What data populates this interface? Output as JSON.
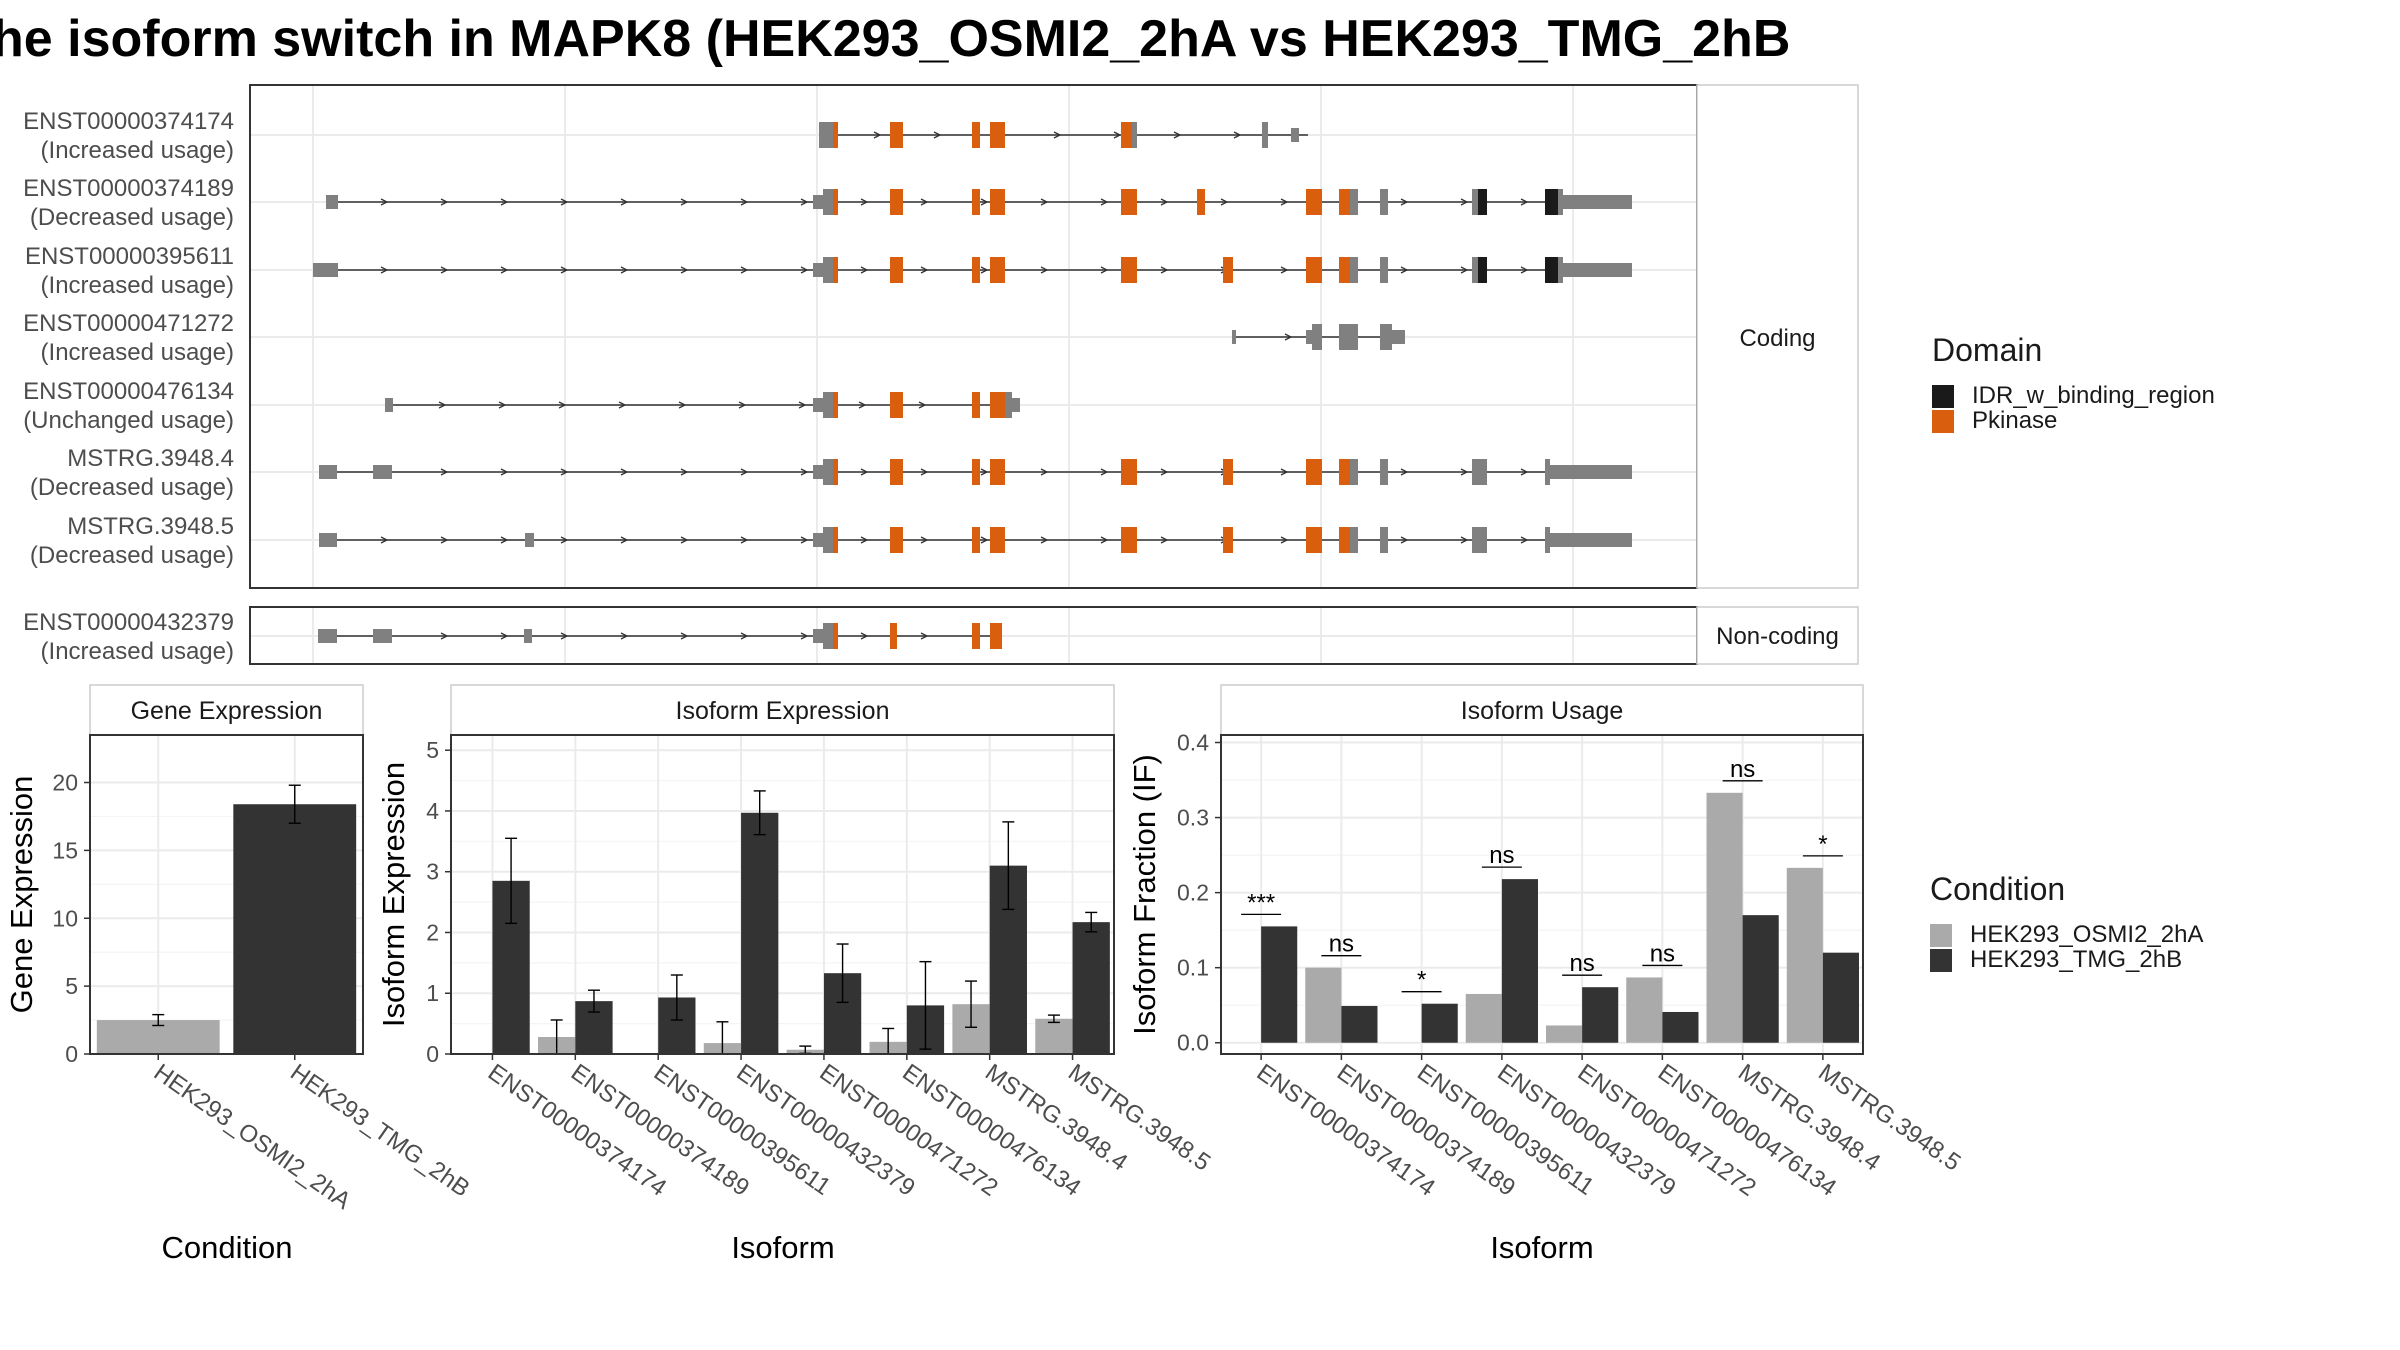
{
  "title": "he isoform switch in MAPK8 (HEK293_OSMI2_2hA vs HEK293_TMG_2hB",
  "colors": {
    "pkinase": "#D95F0E",
    "idr": "#1A1A1A",
    "exon": "#808080",
    "cond_a": "#AAAAAA",
    "cond_b": "#333333"
  },
  "structure": {
    "coding_label": "Coding",
    "noncoding_label": "Non-coding",
    "isoforms": [
      {
        "id": "ENST00000374174",
        "usage": "(Increased usage)"
      },
      {
        "id": "ENST00000374189",
        "usage": "(Decreased usage)"
      },
      {
        "id": "ENST00000395611",
        "usage": "(Increased usage)"
      },
      {
        "id": "ENST00000471272",
        "usage": "(Increased usage)"
      },
      {
        "id": "ENST00000476134",
        "usage": "(Unchanged usage)"
      },
      {
        "id": "MSTRG.3948.4",
        "usage": "(Decreased usage)"
      },
      {
        "id": "MSTRG.3948.5",
        "usage": "(Decreased usage)"
      },
      {
        "id": "ENST00000432379",
        "usage": "(Increased usage)"
      }
    ]
  },
  "legend_domain": {
    "title": "Domain",
    "items": [
      {
        "label": "IDR_w_binding_region",
        "color": "#1A1A1A"
      },
      {
        "label": "Pkinase",
        "color": "#D95F0E"
      }
    ]
  },
  "legend_condition": {
    "title": "Condition",
    "items": [
      {
        "label": "HEK293_OSMI2_2hA",
        "color": "#AAAAAA"
      },
      {
        "label": "HEK293_TMG_2hB",
        "color": "#333333"
      }
    ]
  },
  "chart_data": [
    {
      "type": "bar",
      "title": "Gene Expression",
      "xlabel": "Condition",
      "ylabel": "Gene Expression",
      "ylim": [
        0,
        23.5
      ],
      "yticks": [
        0,
        5,
        10,
        15,
        20
      ],
      "categories": [
        "HEK293_OSMI2_2hA",
        "HEK293_TMG_2hB"
      ],
      "values": [
        2.5,
        18.4
      ],
      "errors": [
        0.4,
        1.4
      ]
    },
    {
      "type": "bar",
      "title": "Isoform Expression",
      "xlabel": "Isoform",
      "ylabel": "Isoform Expression",
      "ylim": [
        0,
        5.25
      ],
      "yticks": [
        0,
        1,
        2,
        3,
        4,
        5
      ],
      "categories": [
        "ENST00000374174",
        "ENST00000374189",
        "ENST00000395611",
        "ENST00000432379",
        "ENST00000471272",
        "ENST00000476134",
        "MSTRG.3948.4",
        "MSTRG.3948.5"
      ],
      "series": [
        {
          "name": "HEK293_OSMI2_2hA",
          "values": [
            0.0,
            0.28,
            0.0,
            0.18,
            0.07,
            0.2,
            0.82,
            0.58
          ],
          "errors": [
            0.0,
            0.28,
            0.0,
            0.35,
            0.06,
            0.22,
            0.38,
            0.06
          ]
        },
        {
          "name": "HEK293_TMG_2hB",
          "values": [
            2.85,
            0.87,
            0.93,
            3.97,
            1.33,
            0.8,
            3.1,
            2.17
          ],
          "errors": [
            0.7,
            0.18,
            0.37,
            0.36,
            0.48,
            0.72,
            0.72,
            0.16
          ]
        }
      ]
    },
    {
      "type": "bar",
      "title": "Isoform Usage",
      "xlabel": "Isoform",
      "ylabel": "Isoform Fraction (IF)",
      "ylim": [
        -0.015,
        0.41
      ],
      "yticks": [
        0.0,
        0.1,
        0.2,
        0.3,
        0.4
      ],
      "categories": [
        "ENST00000374174",
        "ENST00000374189",
        "ENST00000395611",
        "ENST00000432379",
        "ENST00000471272",
        "ENST00000476134",
        "MSTRG.3948.4",
        "MSTRG.3948.5"
      ],
      "series": [
        {
          "name": "HEK293_OSMI2_2hA",
          "values": [
            0.0,
            0.1,
            0.0,
            0.065,
            0.023,
            0.087,
            0.333,
            0.233
          ]
        },
        {
          "name": "HEK293_TMG_2hB",
          "values": [
            0.155,
            0.049,
            0.052,
            0.218,
            0.074,
            0.041,
            0.17,
            0.12
          ]
        }
      ],
      "annotations": [
        "***",
        "ns",
        "*",
        "ns",
        "ns",
        "ns",
        "ns",
        "*"
      ]
    }
  ]
}
